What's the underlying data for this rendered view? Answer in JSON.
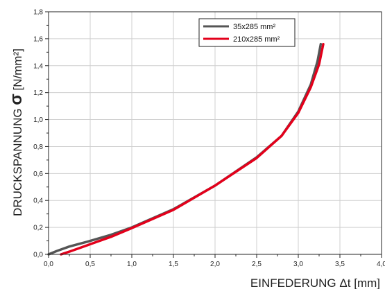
{
  "chart_data": {
    "type": "line",
    "xlabel_text": "EINFEDERUNG",
    "xlabel_symbol": "Δt",
    "xlabel_unit": "[mm]",
    "ylabel_text": "DRUCKSPANNUNG",
    "ylabel_symbol": "σ",
    "ylabel_unit": "[N/mm²]",
    "xlim": [
      0,
      4
    ],
    "ylim": [
      0,
      1.8
    ],
    "grid": true,
    "legend_position": "top-right",
    "x_ticks": [
      "0,0",
      "0,5",
      "1,0",
      "1,5",
      "2,0",
      "2,5",
      "3,0",
      "3,5",
      "4,0"
    ],
    "y_ticks": [
      "0,0",
      "0,2",
      "0,4",
      "0,6",
      "0,8",
      "1,0",
      "1,2",
      "1,4",
      "1,6",
      "1,8"
    ],
    "series": [
      {
        "name": "35x285 mm²",
        "color": "#555555",
        "points": [
          [
            0.0,
            0.0
          ],
          [
            0.1,
            0.025
          ],
          [
            0.25,
            0.058
          ],
          [
            0.5,
            0.1
          ],
          [
            0.75,
            0.145
          ],
          [
            1.0,
            0.2
          ],
          [
            1.5,
            0.335
          ],
          [
            2.0,
            0.51
          ],
          [
            2.5,
            0.72
          ],
          [
            2.8,
            0.88
          ],
          [
            3.0,
            1.06
          ],
          [
            3.15,
            1.26
          ],
          [
            3.23,
            1.43
          ],
          [
            3.27,
            1.56
          ]
        ]
      },
      {
        "name": "210x285 mm²",
        "color": "#e3001b",
        "points": [
          [
            0.15,
            0.0
          ],
          [
            0.25,
            0.02
          ],
          [
            0.5,
            0.075
          ],
          [
            0.75,
            0.13
          ],
          [
            1.0,
            0.195
          ],
          [
            1.5,
            0.33
          ],
          [
            2.0,
            0.51
          ],
          [
            2.5,
            0.715
          ],
          [
            2.8,
            0.88
          ],
          [
            3.0,
            1.05
          ],
          [
            3.15,
            1.24
          ],
          [
            3.25,
            1.41
          ],
          [
            3.3,
            1.56
          ]
        ]
      }
    ]
  }
}
